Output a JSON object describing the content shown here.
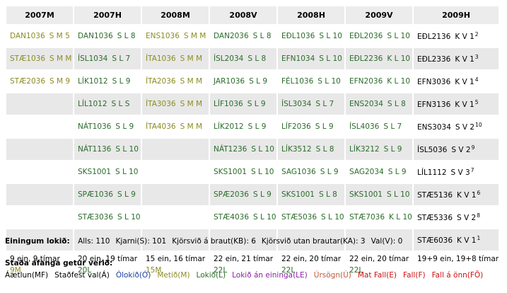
{
  "colors": {
    "metid": "#8c8c23",
    "lokid": "#2a6c2a",
    "olokid": "#1a40a8",
    "header_bg": "#ececec",
    "row_alt_bg": "#e8e8e8"
  },
  "columns": [
    "2007M",
    "2007H",
    "2008M",
    "2008V",
    "2008H",
    "2009V",
    "2009H"
  ],
  "rows": [
    [
      {
        "code": "DAN1036",
        "info": "S M 5",
        "st": "M"
      },
      {
        "code": "DAN1036",
        "info": "S L 8",
        "st": "L"
      },
      {
        "code": "ENS1036",
        "info": "S M M",
        "st": "M"
      },
      {
        "code": "DAN2036",
        "info": "S L 8",
        "st": "L"
      },
      {
        "code": "EÐL1036",
        "info": "S L 10",
        "st": "L"
      },
      {
        "code": "EÐL2036",
        "info": "S L 10",
        "st": "L"
      },
      {
        "code": "EÐL2136",
        "info": "K V 1",
        "sup": "2",
        "st": "plain"
      }
    ],
    [
      {
        "code": "STÆ1036",
        "info": "S M M",
        "st": "M"
      },
      {
        "code": "ÍSL1034",
        "info": "S L 7",
        "st": "L"
      },
      {
        "code": "ÍTA1036",
        "info": "S M M",
        "st": "M"
      },
      {
        "code": "ÍSL2034",
        "info": "S L 8",
        "st": "L"
      },
      {
        "code": "EFN1034",
        "info": "S L 10",
        "st": "L"
      },
      {
        "code": "EÐL2236",
        "info": "K L 10",
        "st": "L"
      },
      {
        "code": "EÐL2336",
        "info": "K V 1",
        "sup": "3",
        "st": "plain"
      }
    ],
    [
      {
        "code": "STÆ2036",
        "info": "S M 9",
        "st": "M"
      },
      {
        "code": "LÍK1012",
        "info": "S L 9",
        "st": "L"
      },
      {
        "code": "ÍTA2036",
        "info": "S M M",
        "st": "M"
      },
      {
        "code": "JAR1036",
        "info": "S L 9",
        "st": "L"
      },
      {
        "code": "FÉL1036",
        "info": "S L 10",
        "st": "L"
      },
      {
        "code": "EFN2036",
        "info": "K L 10",
        "st": "L"
      },
      {
        "code": "EFN3036",
        "info": "K V 1",
        "sup": "4",
        "st": "plain"
      }
    ],
    [
      {
        "code": "",
        "info": "",
        "st": "plain"
      },
      {
        "code": "LÍL1012",
        "info": "S L S",
        "st": "L"
      },
      {
        "code": "ÍTA3036",
        "info": "S M M",
        "st": "M"
      },
      {
        "code": "LÍF1036",
        "info": "S L 9",
        "st": "L"
      },
      {
        "code": "ÍSL3034",
        "info": "S L 7",
        "st": "L"
      },
      {
        "code": "ENS2034",
        "info": "S L 8",
        "st": "L"
      },
      {
        "code": "EFN3136",
        "info": "K V 1",
        "sup": "5",
        "st": "plain"
      }
    ],
    [
      {
        "code": "",
        "info": "",
        "st": "plain"
      },
      {
        "code": "NÁT1036",
        "info": "S L 9",
        "st": "L"
      },
      {
        "code": "ÍTA4036",
        "info": "S M M",
        "st": "M"
      },
      {
        "code": "LÍK2012",
        "info": "S L 9",
        "st": "L"
      },
      {
        "code": "LÍF2036",
        "info": "S L 9",
        "st": "L"
      },
      {
        "code": "ÍSL4036",
        "info": "S L 7",
        "st": "L"
      },
      {
        "code": "ENS3034",
        "info": "S V 2",
        "sup": "10",
        "st": "plain"
      }
    ],
    [
      {
        "code": "",
        "info": "",
        "st": "plain"
      },
      {
        "code": "NÁT1136",
        "info": "S L 10",
        "st": "L"
      },
      {
        "code": "",
        "info": "",
        "st": "plain"
      },
      {
        "code": "NÁT1236",
        "info": "S L 10",
        "st": "L"
      },
      {
        "code": "LÍK3512",
        "info": "S L 8",
        "st": "L"
      },
      {
        "code": "LÍK3212",
        "info": "S L 9",
        "st": "L"
      },
      {
        "code": "ÍSL5036",
        "info": "S V 2",
        "sup": "9",
        "st": "plain"
      }
    ],
    [
      {
        "code": "",
        "info": "",
        "st": "plain"
      },
      {
        "code": "SKS1001",
        "info": "S L 10",
        "st": "L"
      },
      {
        "code": "",
        "info": "",
        "st": "plain"
      },
      {
        "code": "SKS1001",
        "info": "S L 10",
        "st": "L"
      },
      {
        "code": "SAG1036",
        "info": "S L 9",
        "st": "L"
      },
      {
        "code": "SAG2034",
        "info": "S L 9",
        "st": "L"
      },
      {
        "code": "LÍL1112",
        "info": "S V 3",
        "sup": "7",
        "st": "plain"
      }
    ],
    [
      {
        "code": "",
        "info": "",
        "st": "plain"
      },
      {
        "code": "SPÆ1036",
        "info": "S L 9",
        "st": "L"
      },
      {
        "code": "",
        "info": "",
        "st": "plain"
      },
      {
        "code": "SPÆ2036",
        "info": "S L 9",
        "st": "L"
      },
      {
        "code": "SKS1001",
        "info": "S L 8",
        "st": "L"
      },
      {
        "code": "SKS1001",
        "info": "S L 10",
        "st": "L"
      },
      {
        "code": "STÆ5136",
        "info": "K V 1",
        "sup": "6",
        "st": "plain"
      }
    ],
    [
      {
        "code": "",
        "info": "",
        "st": "plain"
      },
      {
        "code": "STÆ3036",
        "info": "S L 10",
        "st": "L"
      },
      {
        "code": "",
        "info": "",
        "st": "plain"
      },
      {
        "code": "STÆ4036",
        "info": "S L 10",
        "st": "L"
      },
      {
        "code": "STÆ5036",
        "info": "S L 10",
        "st": "L"
      },
      {
        "code": "STÆ7036",
        "info": "K L 10",
        "st": "L"
      },
      {
        "code": "STÆ5336",
        "info": "S V 2",
        "sup": "8",
        "st": "plain"
      }
    ],
    [
      {
        "code": "",
        "info": "",
        "st": "plain"
      },
      {
        "code": "",
        "info": "",
        "st": "plain"
      },
      {
        "code": "",
        "info": "",
        "st": "plain"
      },
      {
        "code": "",
        "info": "",
        "st": "plain"
      },
      {
        "code": "",
        "info": "",
        "st": "plain"
      },
      {
        "code": "",
        "info": "",
        "st": "plain"
      },
      {
        "code": "STÆ6036",
        "info": "K V 1",
        "sup": "1",
        "st": "plain"
      }
    ]
  ],
  "totals": [
    {
      "text": "9 ein, 9 tímar",
      "sub": "9M",
      "st": "M"
    },
    {
      "text": "20 ein, 19 tímar",
      "sub": "20L",
      "st": "L"
    },
    {
      "text": "15 ein, 16 tímar",
      "sub": "15M",
      "st": "M"
    },
    {
      "text": "22 ein, 21 tímar",
      "sub": "22L",
      "st": "L"
    },
    {
      "text": "22 ein, 20 tímar",
      "sub": "22L",
      "st": "L"
    },
    {
      "text": "22 ein, 20 tímar",
      "sub": "22L",
      "st": "L"
    },
    {
      "text": "19+9 ein, 19+8 tímar",
      "sub": "",
      "st": "plain"
    }
  ],
  "summary": {
    "label": "Einingum lokið:",
    "items": [
      "Alls: 110",
      "Kjarni(S): 101",
      "Kjörsvið á braut(KB): 6",
      "Kjörsvið utan brautar(KA): 3",
      "Val(V): 0"
    ]
  },
  "legend": {
    "title": "Staða áfanga getur verið:",
    "items": [
      {
        "label": "Áætlun(MF)",
        "color": "#000000"
      },
      {
        "label": "Staðfest val(Á)",
        "color": "#000000"
      },
      {
        "label": "Ólokið(Ó)",
        "color": "#1a40a8"
      },
      {
        "label": "Metið(M)",
        "color": "#8c8c23"
      },
      {
        "label": "Lokið(L)",
        "color": "#2a6c2a"
      },
      {
        "label": "Lokið án eininga(LE)",
        "color": "#8a1fa0"
      },
      {
        "label": "Úrsögn(Ú)",
        "color": "#c25a3a"
      },
      {
        "label": "Mat Fall(E)",
        "color": "#cc1111"
      },
      {
        "label": "Fall(F)",
        "color": "#cc1111"
      },
      {
        "label": "Fall á önn(FÖ)",
        "color": "#cc1111"
      }
    ]
  }
}
